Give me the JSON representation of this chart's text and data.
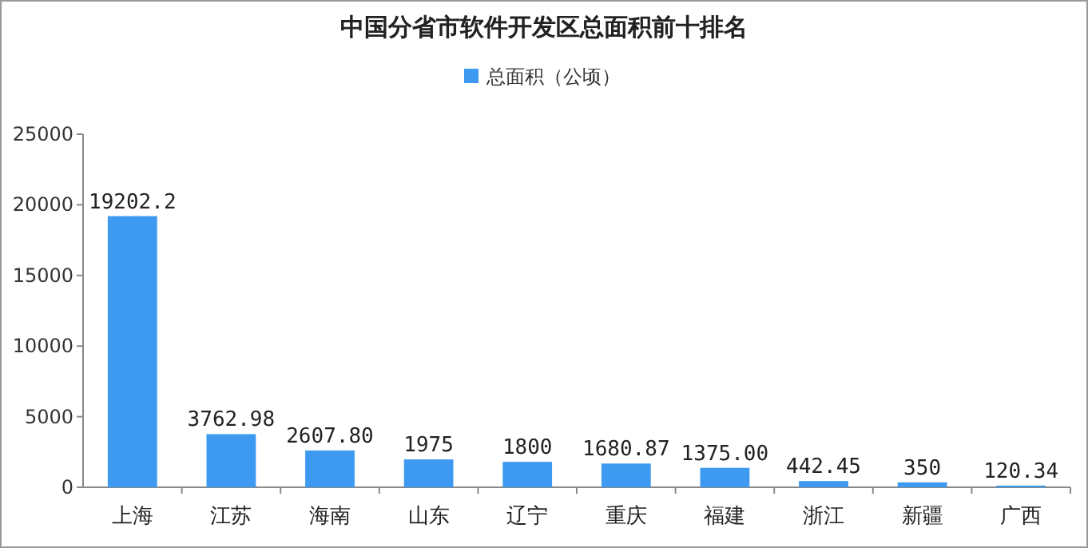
{
  "chart_data": {
    "type": "bar",
    "title": "中国分省市软件开发区总面积前十排名",
    "categories": [
      "上海",
      "江苏",
      "海南",
      "山东",
      "辽宁",
      "重庆",
      "福建",
      "浙江",
      "新疆",
      "广西"
    ],
    "series": [
      {
        "name": "总面积（公顷）",
        "color": "#3d9af0",
        "values": [
          19202.2,
          3762.98,
          2607.8,
          1975,
          1800,
          1680.87,
          1375,
          442.45,
          350,
          120.34
        ],
        "value_labels": [
          "19202.2",
          "3762.98",
          "2607.80",
          "1975",
          "1800",
          "1680.87",
          "1375.00",
          "442.45",
          "350",
          "120.34"
        ]
      }
    ],
    "ylim": [
      0,
      25000
    ],
    "yticks": [
      0,
      5000,
      10000,
      15000,
      20000,
      25000
    ],
    "grid": false,
    "legend": "top"
  }
}
